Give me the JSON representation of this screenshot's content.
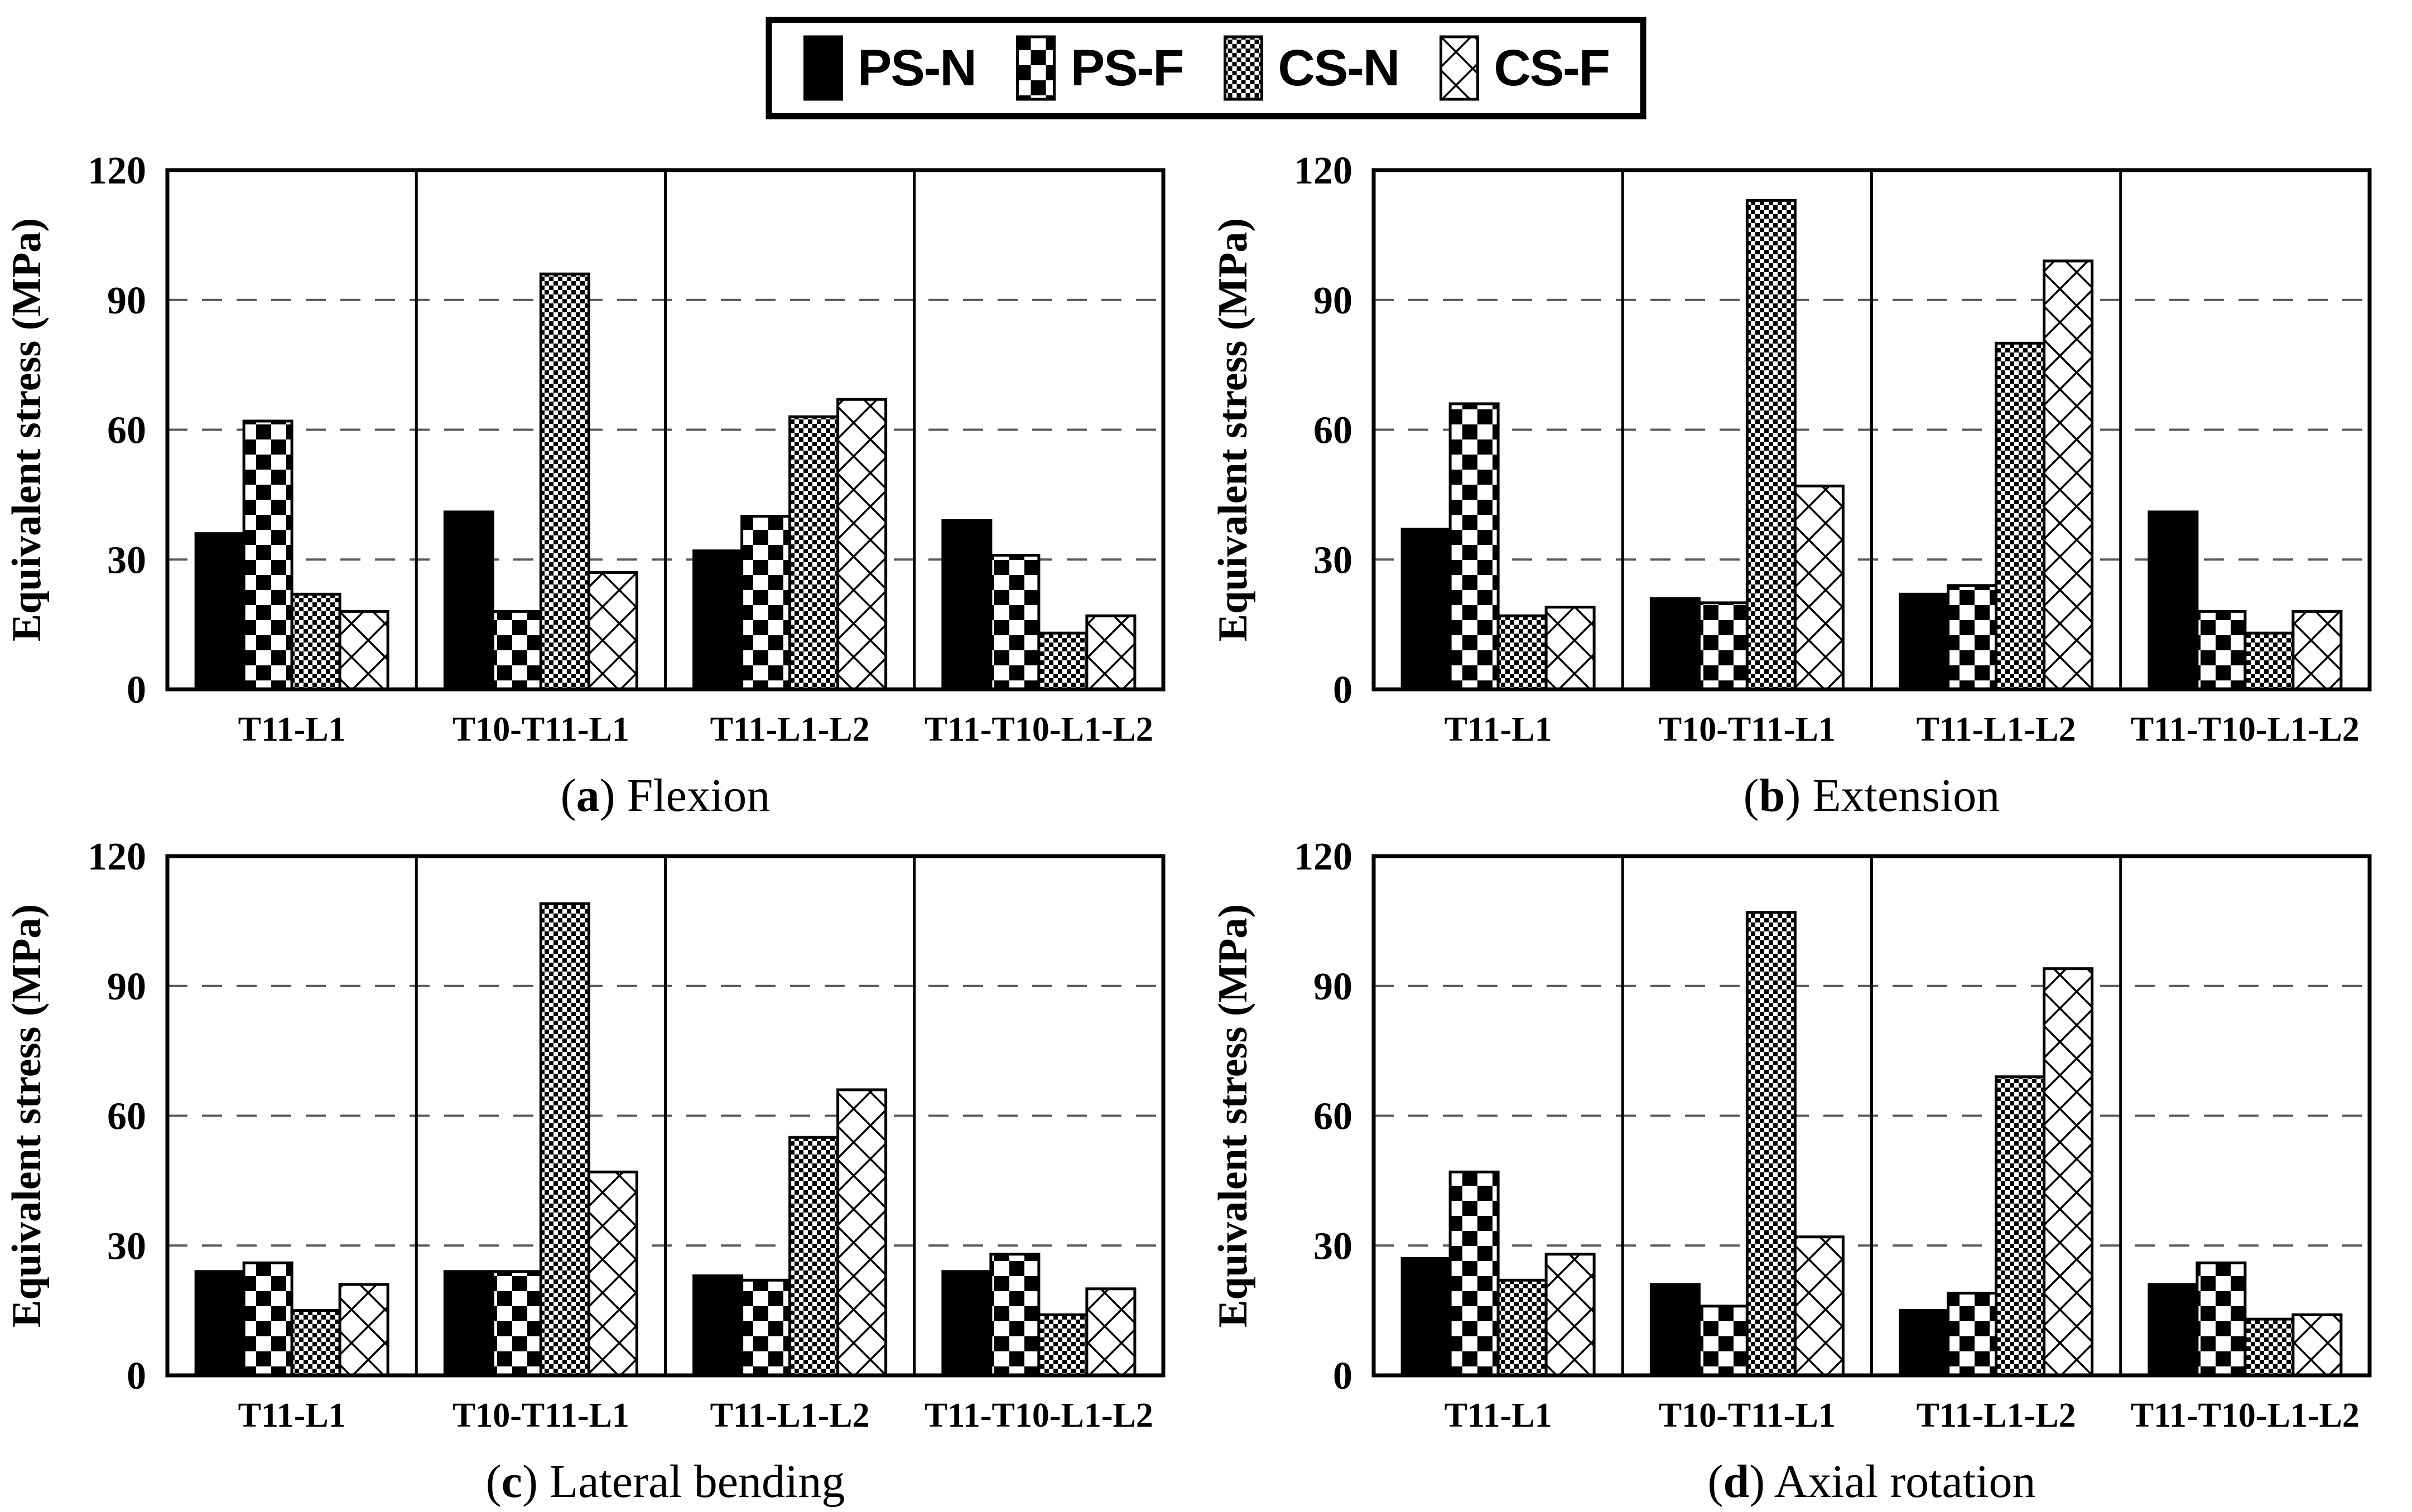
{
  "page": {
    "background": "#ffffff",
    "text_color": "#000000",
    "gridline_color": "#595959"
  },
  "legend": {
    "border_color": "#000000",
    "items": [
      {
        "label": "PS-N",
        "pattern": "solid-black"
      },
      {
        "label": "PS-F",
        "pattern": "checkerboard"
      },
      {
        "label": "CS-N",
        "pattern": "fine-checker"
      },
      {
        "label": "CS-F",
        "pattern": "diamond-crosshatch"
      }
    ]
  },
  "chart_data": [
    {
      "type": "bar",
      "caption_letter": "a",
      "caption_text": "Flexion",
      "ylabel": "Equivalent stress (MPa)",
      "ylim": [
        0,
        120
      ],
      "yticks": [
        0,
        30,
        60,
        90,
        120
      ],
      "gridlines": [
        30,
        60,
        90
      ],
      "grid_style": "dashed",
      "legend_position": "top-center-outside",
      "categories": [
        "T11-L1",
        "T10-T11-L1",
        "T11-L1-L2",
        "T11-T10-L1-L2"
      ],
      "series": [
        {
          "name": "PS-N",
          "pattern": "solid-black",
          "values": [
            36,
            41,
            32,
            39
          ]
        },
        {
          "name": "PS-F",
          "pattern": "checkerboard",
          "values": [
            62,
            18,
            40,
            31
          ]
        },
        {
          "name": "CS-N",
          "pattern": "fine-checker",
          "values": [
            22,
            96,
            63,
            13
          ]
        },
        {
          "name": "CS-F",
          "pattern": "diamond-crosshatch",
          "values": [
            18,
            27,
            67,
            17
          ]
        }
      ]
    },
    {
      "type": "bar",
      "caption_letter": "b",
      "caption_text": "Extension",
      "ylabel": "Equivalent stress (MPa)",
      "ylim": [
        0,
        120
      ],
      "yticks": [
        0,
        30,
        60,
        90,
        120
      ],
      "gridlines": [
        30,
        60,
        90
      ],
      "grid_style": "dashed",
      "legend_position": "top-center-outside",
      "categories": [
        "T11-L1",
        "T10-T11-L1",
        "T11-L1-L2",
        "T11-T10-L1-L2"
      ],
      "series": [
        {
          "name": "PS-N",
          "pattern": "solid-black",
          "values": [
            37,
            21,
            22,
            41
          ]
        },
        {
          "name": "PS-F",
          "pattern": "checkerboard",
          "values": [
            66,
            20,
            24,
            18
          ]
        },
        {
          "name": "CS-N",
          "pattern": "fine-checker",
          "values": [
            17,
            113,
            80,
            13
          ]
        },
        {
          "name": "CS-F",
          "pattern": "diamond-crosshatch",
          "values": [
            19,
            47,
            99,
            18
          ]
        }
      ]
    },
    {
      "type": "bar",
      "caption_letter": "c",
      "caption_text": "Lateral bending",
      "ylabel": "Equivalent stress (MPa)",
      "ylim": [
        0,
        120
      ],
      "yticks": [
        0,
        30,
        60,
        90,
        120
      ],
      "gridlines": [
        30,
        60,
        90
      ],
      "grid_style": "dashed",
      "legend_position": "top-center-outside",
      "categories": [
        "T11-L1",
        "T10-T11-L1",
        "T11-L1-L2",
        "T11-T10-L1-L2"
      ],
      "series": [
        {
          "name": "PS-N",
          "pattern": "solid-black",
          "values": [
            24,
            24,
            23,
            24
          ]
        },
        {
          "name": "PS-F",
          "pattern": "checkerboard",
          "values": [
            26,
            24,
            22,
            28
          ]
        },
        {
          "name": "CS-N",
          "pattern": "fine-checker",
          "values": [
            15,
            109,
            55,
            14
          ]
        },
        {
          "name": "CS-F",
          "pattern": "diamond-crosshatch",
          "values": [
            21,
            47,
            66,
            20
          ]
        }
      ]
    },
    {
      "type": "bar",
      "caption_letter": "d",
      "caption_text": "Axial rotation",
      "ylabel": "Equivalent stress (MPa)",
      "ylim": [
        0,
        120
      ],
      "yticks": [
        0,
        30,
        60,
        90,
        120
      ],
      "gridlines": [
        30,
        60,
        90
      ],
      "grid_style": "dashed",
      "legend_position": "top-center-outside",
      "categories": [
        "T11-L1",
        "T10-T11-L1",
        "T11-L1-L2",
        "T11-T10-L1-L2"
      ],
      "series": [
        {
          "name": "PS-N",
          "pattern": "solid-black",
          "values": [
            27,
            21,
            15,
            21
          ]
        },
        {
          "name": "PS-F",
          "pattern": "checkerboard",
          "values": [
            47,
            16,
            19,
            26
          ]
        },
        {
          "name": "CS-N",
          "pattern": "fine-checker",
          "values": [
            22,
            107,
            69,
            13
          ]
        },
        {
          "name": "CS-F",
          "pattern": "diamond-crosshatch",
          "values": [
            28,
            32,
            94,
            14
          ]
        }
      ]
    }
  ]
}
